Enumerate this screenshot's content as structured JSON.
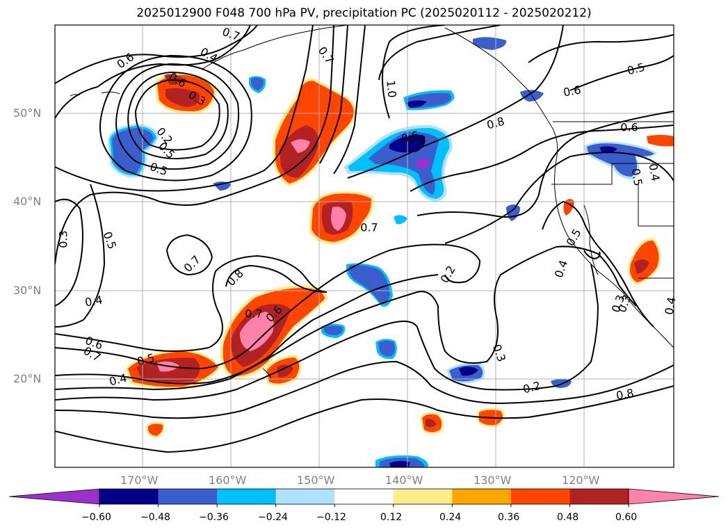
{
  "title": "2025012900 F048 700 hPa PV, precipitation PC (2025020112 - 2025020212)",
  "lat_labels": [
    "50°N",
    "40°N",
    "30°N",
    "20°N"
  ],
  "lon_labels": [
    "170°W",
    "160°W",
    "150°W",
    "140°W",
    "130°W",
    "120°W"
  ],
  "colorbar": {
    "ticks": [
      "−0.60",
      "−0.48",
      "−0.36",
      "−0.24",
      "−0.12",
      "0.12",
      "0.24",
      "0.36",
      "0.48",
      "0.60"
    ],
    "colors": [
      "#9932cc",
      "#00008b",
      "#3a5fcd",
      "#00bfff",
      "#b0e2ff",
      "#ffffff",
      "#ffec8b",
      "#ffa500",
      "#ff4500",
      "#b22222",
      "#ff82ab"
    ]
  },
  "contour_labels": [
    {
      "text": "0.6"
    },
    {
      "text": "0.4"
    },
    {
      "text": "0.7"
    },
    {
      "text": "0.3"
    },
    {
      "text": "0.6"
    },
    {
      "text": "0.7"
    },
    {
      "text": "0.5"
    },
    {
      "text": "0.5"
    },
    {
      "text": "0.2"
    },
    {
      "text": "0.5"
    },
    {
      "text": "1.0"
    },
    {
      "text": "0.8"
    },
    {
      "text": "0.8"
    },
    {
      "text": "0.6"
    },
    {
      "text": "0.6"
    },
    {
      "text": "0.5"
    },
    {
      "text": "0.3"
    },
    {
      "text": "0.5"
    },
    {
      "text": "0.7"
    },
    {
      "text": "0.7"
    },
    {
      "text": "0.4"
    },
    {
      "text": "0.8"
    },
    {
      "text": "0.7"
    },
    {
      "text": "0.6"
    },
    {
      "text": "0.6"
    },
    {
      "text": "0.7"
    },
    {
      "text": "0.5"
    },
    {
      "text": "0.4"
    },
    {
      "text": "0.2"
    },
    {
      "text": "0.5"
    },
    {
      "text": "0.4"
    },
    {
      "text": "0.3"
    },
    {
      "text": "0.4"
    },
    {
      "text": "0.3"
    },
    {
      "text": "0.3"
    },
    {
      "text": "0.2"
    },
    {
      "text": "0.8"
    },
    {
      "text": "0.6"
    },
    {
      "text": "0.4"
    }
  ]
}
